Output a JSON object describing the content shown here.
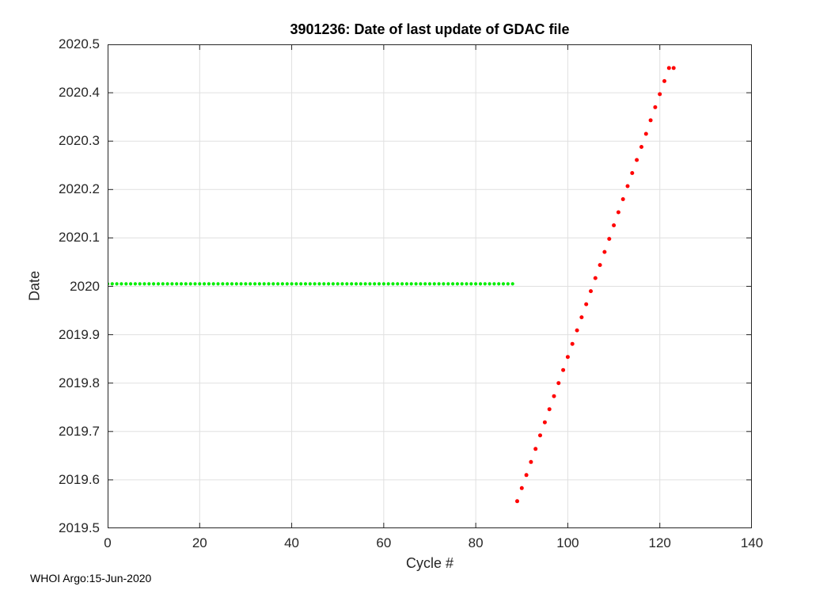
{
  "figure": {
    "footer": "WHOI Argo:15-Jun-2020"
  },
  "chart_data": {
    "type": "scatter",
    "title": "3901236: Date of last update of GDAC file",
    "xlabel": "Cycle #",
    "ylabel": "Date",
    "xlim": [
      0,
      140
    ],
    "ylim": [
      2019.5,
      2020.5
    ],
    "grid": true,
    "legend": "none",
    "x_ticks": [
      0,
      20,
      40,
      60,
      80,
      100,
      120,
      140
    ],
    "x_tick_labels": [
      "0",
      "20",
      "40",
      "60",
      "80",
      "100",
      "120",
      "140"
    ],
    "y_ticks": [
      2020.5,
      2020.4,
      2020.3,
      2020.2,
      2020.1,
      2020,
      2019.9,
      2019.8,
      2019.7,
      2019.6,
      2019.5
    ],
    "y_tick_labels": [
      "2020.5",
      "2020.4",
      "2020.3",
      "2020.2",
      "2020.1",
      "2020",
      "2019.9",
      "2019.8",
      "2019.7",
      "2019.6",
      "2019.5"
    ],
    "style": {
      "axis_color": "#262626",
      "grid_color": "#e0e0e0",
      "background": "#ffffff",
      "green": "#00ee00",
      "red": "#ff0000"
    },
    "series": [
      {
        "name": "green",
        "marker": "dot",
        "color": "#00ee00",
        "marker_radius": 2.1,
        "x": [
          0,
          1,
          2,
          3,
          4,
          5,
          6,
          7,
          8,
          9,
          10,
          11,
          12,
          13,
          14,
          15,
          16,
          17,
          18,
          19,
          20,
          21,
          22,
          23,
          24,
          25,
          26,
          27,
          28,
          29,
          30,
          31,
          32,
          33,
          34,
          35,
          36,
          37,
          38,
          39,
          40,
          41,
          42,
          43,
          44,
          45,
          46,
          47,
          48,
          49,
          50,
          51,
          52,
          53,
          54,
          55,
          56,
          57,
          58,
          59,
          60,
          61,
          62,
          63,
          64,
          65,
          66,
          67,
          68,
          69,
          70,
          71,
          72,
          73,
          74,
          75,
          76,
          77,
          78,
          79,
          80,
          81,
          82,
          83,
          84,
          85,
          86,
          87,
          88
        ],
        "y": [
          2020.005,
          2020.005,
          2020.005,
          2020.005,
          2020.005,
          2020.005,
          2020.005,
          2020.005,
          2020.005,
          2020.005,
          2020.005,
          2020.005,
          2020.005,
          2020.005,
          2020.005,
          2020.005,
          2020.005,
          2020.005,
          2020.005,
          2020.005,
          2020.005,
          2020.005,
          2020.005,
          2020.005,
          2020.005,
          2020.005,
          2020.005,
          2020.005,
          2020.005,
          2020.005,
          2020.005,
          2020.005,
          2020.005,
          2020.005,
          2020.005,
          2020.005,
          2020.005,
          2020.005,
          2020.005,
          2020.005,
          2020.005,
          2020.005,
          2020.005,
          2020.005,
          2020.005,
          2020.005,
          2020.005,
          2020.005,
          2020.005,
          2020.005,
          2020.005,
          2020.005,
          2020.005,
          2020.005,
          2020.005,
          2020.005,
          2020.005,
          2020.005,
          2020.005,
          2020.005,
          2020.005,
          2020.005,
          2020.005,
          2020.005,
          2020.005,
          2020.005,
          2020.005,
          2020.005,
          2020.005,
          2020.005,
          2020.005,
          2020.005,
          2020.005,
          2020.005,
          2020.005,
          2020.005,
          2020.005,
          2020.005,
          2020.005,
          2020.005,
          2020.005,
          2020.005,
          2020.005,
          2020.005,
          2020.005,
          2020.005,
          2020.005,
          2020.005,
          2020.005
        ]
      },
      {
        "name": "red",
        "marker": "dot",
        "color": "#ff0000",
        "marker_radius": 2.5,
        "x": [
          89,
          90,
          91,
          92,
          93,
          94,
          95,
          96,
          97,
          98,
          99,
          100,
          101,
          102,
          103,
          104,
          105,
          106,
          107,
          108,
          109,
          110,
          111,
          112,
          113,
          114,
          115,
          116,
          117,
          118,
          119,
          120,
          121,
          122,
          123
        ],
        "y": [
          2019.556,
          2019.583,
          2019.61,
          2019.637,
          2019.664,
          2019.692,
          2019.719,
          2019.746,
          2019.773,
          2019.8,
          2019.827,
          2019.854,
          2019.881,
          2019.909,
          2019.936,
          2019.963,
          2019.99,
          2020.017,
          2020.044,
          2020.071,
          2020.098,
          2020.126,
          2020.153,
          2020.18,
          2020.207,
          2020.234,
          2020.261,
          2020.288,
          2020.315,
          2020.343,
          2020.37,
          2020.397,
          2020.424,
          2020.451,
          2020.451
        ]
      }
    ]
  }
}
